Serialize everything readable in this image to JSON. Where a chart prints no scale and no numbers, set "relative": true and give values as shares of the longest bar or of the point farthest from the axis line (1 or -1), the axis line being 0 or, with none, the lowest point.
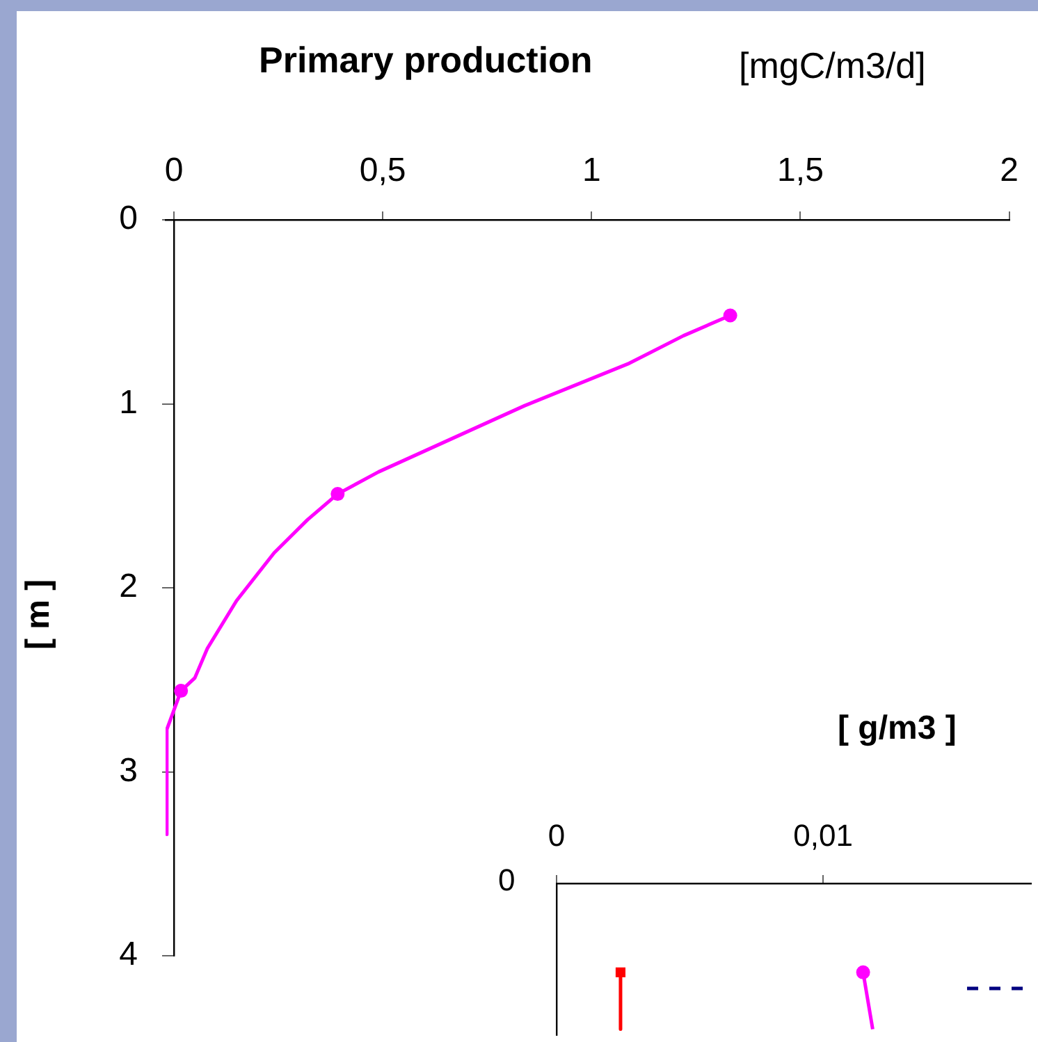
{
  "chart_data": [
    {
      "type": "line",
      "title": "Primary production",
      "xlabel": "[mgC/m3/d]",
      "ylabel": "[ m ]",
      "grid": false,
      "legend": false,
      "xlim": [
        -0.02,
        2
      ],
      "xticks": [
        0,
        {
          "value": 0.5,
          "label": "0,5"
        },
        1,
        {
          "value": 1.5,
          "label": "1,5"
        },
        2
      ],
      "ylim": [
        4,
        0
      ],
      "yticks": [
        0,
        1,
        2,
        3,
        4
      ],
      "series": [
        {
          "type": "line",
          "color": "#ff00ff",
          "marker": "none",
          "x": [
            1.332,
            1.22,
            1.09,
            0.84,
            0.49,
            0.392,
            0.32,
            0.24,
            0.15,
            0.08,
            0.05,
            0.017,
            -0.017,
            -0.017
          ],
          "values": [
            0.52,
            0.63,
            0.78,
            1.01,
            1.37,
            1.49,
            1.63,
            1.81,
            2.07,
            2.33,
            2.49,
            2.56,
            2.77,
            3.34
          ]
        },
        {
          "type": "scatter",
          "color": "#ff00ff",
          "marker": "circle",
          "x": [
            1.332,
            0.392,
            0.017
          ],
          "values": [
            0.52,
            1.49,
            2.56
          ]
        }
      ]
    },
    {
      "type": "line",
      "xlabel": "[ g/m3 ]",
      "annotations": [
        "0"
      ],
      "relative": true,
      "grid": false,
      "legend": false,
      "xlim": [
        0,
        0.0178
      ],
      "xticks": [
        0,
        {
          "value": 0.01,
          "label": "0,01"
        }
      ],
      "series": [
        {
          "type": "line",
          "color": "#ff0000",
          "marker": "none",
          "x": [
            0.0024,
            0.0024
          ],
          "values": [
            -0.61,
            -1
          ]
        },
        {
          "type": "scatter",
          "color": "#ff0000",
          "marker": "square",
          "x": [
            0.0024
          ],
          "values": [
            -0.61
          ]
        },
        {
          "type": "line",
          "color": "#ff00ff",
          "marker": "none",
          "x": [
            0.0115,
            0.01186
          ],
          "values": [
            -0.61,
            -1
          ]
        },
        {
          "type": "scatter",
          "color": "#ff00ff",
          "marker": "circle",
          "x": [
            0.0115
          ],
          "values": [
            -0.61
          ]
        },
        {
          "type": "line",
          "color": "#000080",
          "marker": "none",
          "line_style": "dashed",
          "x": [
            0.0154,
            0.0178
          ],
          "values": [
            -0.72,
            -0.72
          ]
        }
      ]
    }
  ]
}
